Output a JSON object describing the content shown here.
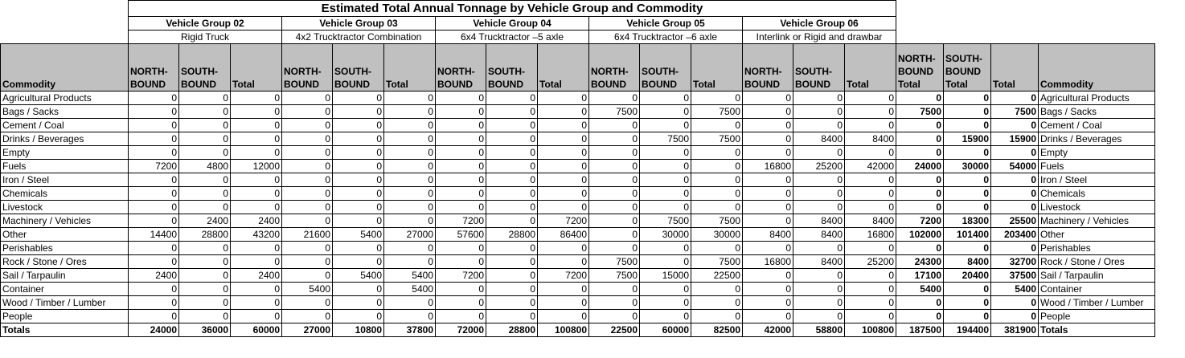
{
  "title": "Estimated Total Annual Tonnage by Vehicle Group and Commodity",
  "groups": [
    {
      "name": "Vehicle Group 02",
      "subtitle": "Rigid Truck"
    },
    {
      "name": "Vehicle Group 03",
      "subtitle": "4x2 Trucktractor Combination"
    },
    {
      "name": "Vehicle Group 04",
      "subtitle": "6x4 Trucktractor –5 axle"
    },
    {
      "name": "Vehicle Group 05",
      "subtitle": "6x4 Trucktractor –6 axle"
    },
    {
      "name": "Vehicle Group 06",
      "subtitle": "Interlink or Rigid and drawbar"
    }
  ],
  "headers": {
    "commodity": "Commodity",
    "north": "NORTH-BOUND",
    "south": "SOUTH-BOUND",
    "total": "Total",
    "north_total": "NORTH-BOUND Total",
    "south_total": "SOUTH-BOUND Total",
    "grand_total": "Total",
    "commodity_right": "Commodity"
  },
  "rows": [
    {
      "commodity": "Agricultural Products",
      "values": [
        0,
        0,
        0,
        0,
        0,
        0,
        0,
        0,
        0,
        0,
        0,
        0,
        0,
        0,
        0
      ],
      "totals": [
        0,
        0,
        0
      ]
    },
    {
      "commodity": "Bags / Sacks",
      "values": [
        0,
        0,
        0,
        0,
        0,
        0,
        0,
        0,
        0,
        7500,
        0,
        7500,
        0,
        0,
        0
      ],
      "totals": [
        7500,
        0,
        7500
      ]
    },
    {
      "commodity": "Cement / Coal",
      "values": [
        0,
        0,
        0,
        0,
        0,
        0,
        0,
        0,
        0,
        0,
        0,
        0,
        0,
        0,
        0
      ],
      "totals": [
        0,
        0,
        0
      ]
    },
    {
      "commodity": "Drinks / Beverages",
      "values": [
        0,
        0,
        0,
        0,
        0,
        0,
        0,
        0,
        0,
        0,
        7500,
        7500,
        0,
        8400,
        8400
      ],
      "totals": [
        0,
        15900,
        15900
      ]
    },
    {
      "commodity": "Empty",
      "values": [
        0,
        0,
        0,
        0,
        0,
        0,
        0,
        0,
        0,
        0,
        0,
        0,
        0,
        0,
        0
      ],
      "totals": [
        0,
        0,
        0
      ]
    },
    {
      "commodity": "Fuels",
      "values": [
        7200,
        4800,
        12000,
        0,
        0,
        0,
        0,
        0,
        0,
        0,
        0,
        0,
        16800,
        25200,
        42000
      ],
      "totals": [
        24000,
        30000,
        54000
      ]
    },
    {
      "commodity": "Iron / Steel",
      "values": [
        0,
        0,
        0,
        0,
        0,
        0,
        0,
        0,
        0,
        0,
        0,
        0,
        0,
        0,
        0
      ],
      "totals": [
        0,
        0,
        0
      ]
    },
    {
      "commodity": "Chemicals",
      "values": [
        0,
        0,
        0,
        0,
        0,
        0,
        0,
        0,
        0,
        0,
        0,
        0,
        0,
        0,
        0
      ],
      "totals": [
        0,
        0,
        0
      ]
    },
    {
      "commodity": "Livestock",
      "values": [
        0,
        0,
        0,
        0,
        0,
        0,
        0,
        0,
        0,
        0,
        0,
        0,
        0,
        0,
        0
      ],
      "totals": [
        0,
        0,
        0
      ]
    },
    {
      "commodity": "Machinery / Vehicles",
      "values": [
        0,
        2400,
        2400,
        0,
        0,
        0,
        7200,
        0,
        7200,
        0,
        7500,
        7500,
        0,
        8400,
        8400
      ],
      "totals": [
        7200,
        18300,
        25500
      ]
    },
    {
      "commodity": "Other",
      "values": [
        14400,
        28800,
        43200,
        21600,
        5400,
        27000,
        57600,
        28800,
        86400,
        0,
        30000,
        30000,
        8400,
        8400,
        16800
      ],
      "totals": [
        102000,
        101400,
        203400
      ]
    },
    {
      "commodity": "Perishables",
      "values": [
        0,
        0,
        0,
        0,
        0,
        0,
        0,
        0,
        0,
        0,
        0,
        0,
        0,
        0,
        0
      ],
      "totals": [
        0,
        0,
        0
      ]
    },
    {
      "commodity": "Rock / Stone / Ores",
      "values": [
        0,
        0,
        0,
        0,
        0,
        0,
        0,
        0,
        0,
        7500,
        0,
        7500,
        16800,
        8400,
        25200
      ],
      "totals": [
        24300,
        8400,
        32700
      ]
    },
    {
      "commodity": "Sail / Tarpaulin",
      "values": [
        2400,
        0,
        2400,
        0,
        5400,
        5400,
        7200,
        0,
        7200,
        7500,
        15000,
        22500,
        0,
        0,
        0
      ],
      "totals": [
        17100,
        20400,
        37500
      ]
    },
    {
      "commodity": "Container",
      "values": [
        0,
        0,
        0,
        5400,
        0,
        5400,
        0,
        0,
        0,
        0,
        0,
        0,
        0,
        0,
        0
      ],
      "totals": [
        5400,
        0,
        5400
      ]
    },
    {
      "commodity": "Wood / Timber / Lumber",
      "values": [
        0,
        0,
        0,
        0,
        0,
        0,
        0,
        0,
        0,
        0,
        0,
        0,
        0,
        0,
        0
      ],
      "totals": [
        0,
        0,
        0
      ]
    },
    {
      "commodity": "People",
      "values": [
        0,
        0,
        0,
        0,
        0,
        0,
        0,
        0,
        0,
        0,
        0,
        0,
        0,
        0,
        0
      ],
      "totals": [
        0,
        0,
        0
      ]
    }
  ],
  "totals_row": {
    "label": "Totals",
    "values": [
      24000,
      36000,
      60000,
      27000,
      10800,
      37800,
      72000,
      28800,
      100800,
      22500,
      60000,
      82500,
      42000,
      58800,
      100800
    ],
    "totals": [
      187500,
      194400,
      381900
    ]
  }
}
